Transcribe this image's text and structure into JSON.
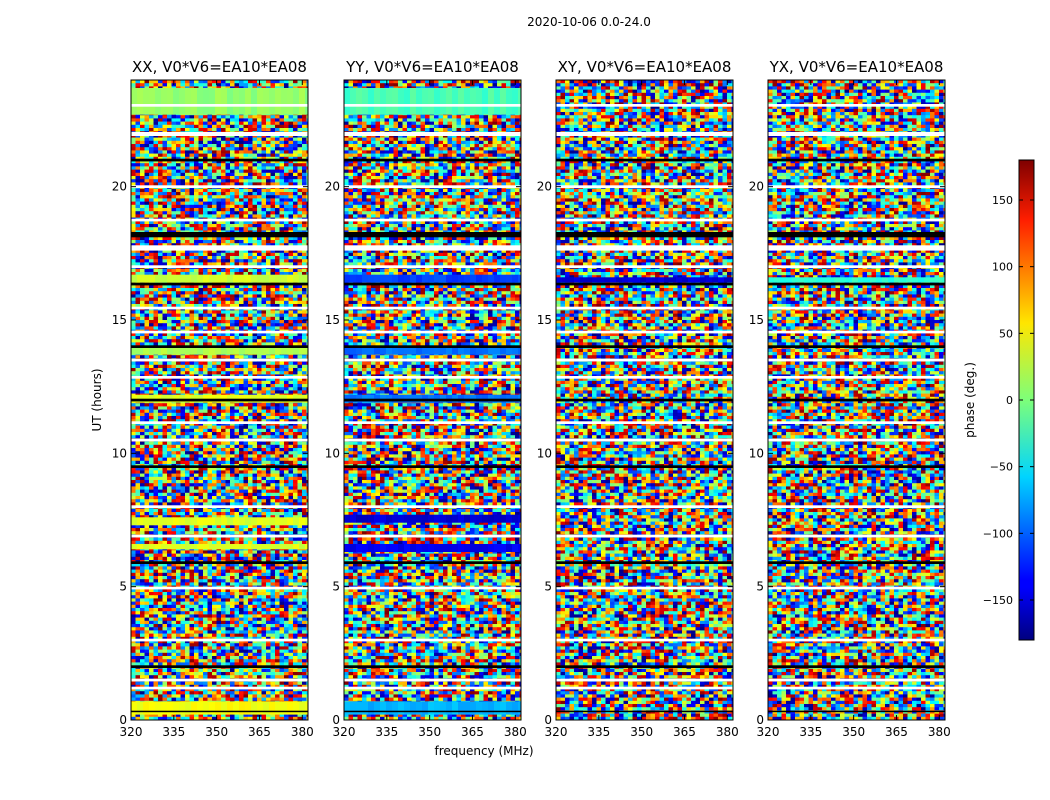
{
  "chart_data": {
    "type": "heatmap",
    "title": "2020-10-06 0.0-24.0",
    "xlabel": "frequency (MHz)",
    "ylabel": "UT (hours)",
    "xlim": [
      320,
      382
    ],
    "ylim": [
      0,
      24
    ],
    "x_ticks": [
      320,
      335,
      350,
      365,
      380
    ],
    "x_tick_labels": [
      "320",
      "335",
      "350",
      "365",
      "380"
    ],
    "y_ticks": [
      0,
      5,
      10,
      15,
      20
    ],
    "y_tick_labels": [
      "0",
      "5",
      "10",
      "15",
      "20"
    ],
    "panels": [
      {
        "label": "XX, V0*V6=EA10*EA08",
        "bands": [
          [
            0.2,
            0.7,
            42
          ],
          [
            6.4,
            6.6,
            32
          ],
          [
            7.3,
            7.6,
            34
          ],
          [
            11.9,
            12.2,
            36
          ],
          [
            13.7,
            14.0,
            16
          ],
          [
            16.4,
            16.7,
            28
          ],
          [
            22.7,
            23.7,
            8
          ]
        ]
      },
      {
        "label": "YY, V0*V6=EA10*EA08",
        "bands": [
          [
            0.2,
            0.7,
            -72
          ],
          [
            6.3,
            6.6,
            -140
          ],
          [
            7.4,
            7.7,
            -150
          ],
          [
            11.9,
            12.2,
            -95
          ],
          [
            13.7,
            14.0,
            -96
          ],
          [
            16.4,
            16.7,
            -112
          ],
          [
            22.7,
            23.7,
            -20
          ]
        ]
      },
      {
        "label": "XY, V0*V6=EA10*EA08",
        "bands": [
          [
            16.4,
            16.6,
            -150
          ]
        ]
      },
      {
        "label": "YX, V0*V6=EA10*EA08",
        "bands": [
          [
            16.4,
            16.6,
            -30
          ]
        ]
      }
    ],
    "gaps_ut": [
      [
        0.3,
        0.35
      ],
      [
        1.15,
        1.25
      ],
      [
        1.45,
        1.55
      ],
      [
        1.95,
        2.05
      ],
      [
        2.95,
        3.05
      ],
      [
        4.9,
        5.0
      ],
      [
        5.85,
        5.95
      ],
      [
        6.85,
        6.95
      ],
      [
        7.95,
        8.05
      ],
      [
        9.45,
        9.55
      ],
      [
        10.45,
        10.55
      ],
      [
        11.1,
        11.2
      ],
      [
        11.95,
        12.05
      ],
      [
        12.8,
        12.9
      ],
      [
        13.45,
        13.55
      ],
      [
        13.95,
        14.05
      ],
      [
        14.5,
        14.6
      ],
      [
        15.4,
        15.5
      ],
      [
        16.3,
        16.4
      ],
      [
        16.95,
        17.05
      ],
      [
        17.6,
        17.8
      ],
      [
        18.1,
        18.3
      ],
      [
        18.7,
        18.8
      ],
      [
        19.95,
        20.05
      ],
      [
        20.95,
        21.05
      ],
      [
        21.9,
        22.05
      ],
      [
        23.0,
        23.1
      ]
    ],
    "colorbar": {
      "label": "phase (deg.)",
      "range": [
        -180,
        180
      ],
      "ticks": [
        150,
        100,
        50,
        0,
        -50,
        -100,
        -150
      ],
      "tick_labels": [
        "150",
        "100",
        "50",
        "0",
        "−50",
        "−100",
        "−150"
      ],
      "colormap": "jet"
    }
  }
}
